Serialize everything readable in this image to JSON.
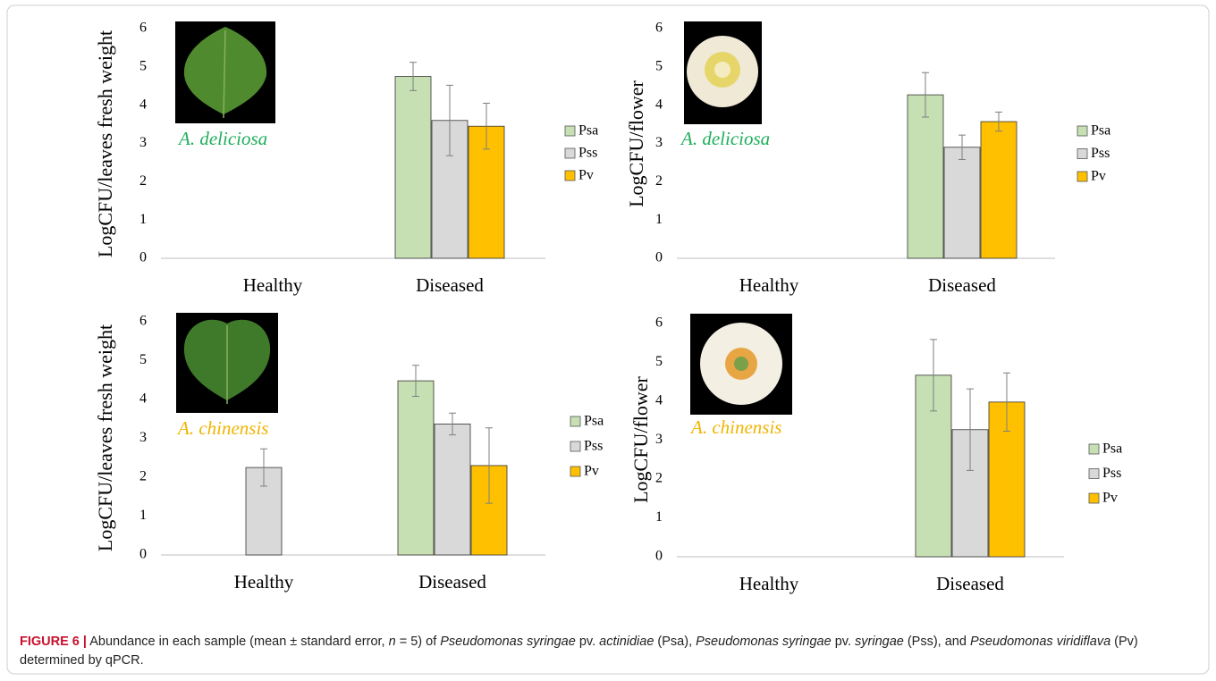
{
  "chart_data": [
    {
      "type": "bar",
      "ylabel": "LogCFU/leaves fresh weight",
      "annotation": "A. deliciosa",
      "categories": [
        "Healthy",
        "Diseased"
      ],
      "series": [
        {
          "name": "Psa",
          "color": "#c6e0b4",
          "values": [
            null,
            4.75
          ],
          "errors": [
            null,
            0.37
          ]
        },
        {
          "name": "Pss",
          "color": "#d9d9d9",
          "values": [
            null,
            3.6
          ],
          "errors": [
            null,
            0.92
          ]
        },
        {
          "name": "Pv",
          "color": "#ffc000",
          "values": [
            null,
            3.45
          ],
          "errors": [
            null,
            0.6
          ]
        }
      ],
      "ylim": [
        0,
        6
      ],
      "yticks": [
        0,
        1,
        2,
        3,
        4,
        5,
        6
      ]
    },
    {
      "type": "bar",
      "ylabel": "LogCFU/flower",
      "annotation": "A. deliciosa",
      "categories": [
        "Healthy",
        "Diseased"
      ],
      "series": [
        {
          "name": "Psa",
          "color": "#c6e0b4",
          "values": [
            null,
            4.27
          ],
          "errors": [
            null,
            0.58
          ]
        },
        {
          "name": "Pss",
          "color": "#d9d9d9",
          "values": [
            null,
            2.9
          ],
          "errors": [
            null,
            0.32
          ]
        },
        {
          "name": "Pv",
          "color": "#ffc000",
          "values": [
            null,
            3.57
          ],
          "errors": [
            null,
            0.25
          ]
        }
      ],
      "ylim": [
        0,
        6
      ],
      "yticks": [
        0,
        1,
        2,
        3,
        4,
        5,
        6
      ]
    },
    {
      "type": "bar",
      "ylabel": "LogCFU/leaves fresh weight",
      "annotation": "A. chinensis",
      "categories": [
        "Healthy",
        "Diseased"
      ],
      "series": [
        {
          "name": "Psa",
          "color": "#c6e0b4",
          "values": [
            null,
            4.48
          ],
          "errors": [
            null,
            0.4
          ]
        },
        {
          "name": "Pss",
          "color": "#d9d9d9",
          "values": [
            2.25,
            3.37
          ],
          "errors": [
            0.48,
            0.28
          ]
        },
        {
          "name": "Pv",
          "color": "#ffc000",
          "values": [
            null,
            2.3
          ],
          "errors": [
            null,
            0.97
          ]
        }
      ],
      "ylim": [
        0,
        6
      ],
      "yticks": [
        0,
        1,
        2,
        3,
        4,
        5,
        6
      ]
    },
    {
      "type": "bar",
      "ylabel": "LogCFU/flower",
      "annotation": "A. chinensis",
      "categories": [
        "Healthy",
        "Diseased"
      ],
      "series": [
        {
          "name": "Psa",
          "color": "#c6e0b4",
          "values": [
            null,
            4.67
          ],
          "errors": [
            null,
            0.92
          ]
        },
        {
          "name": "Pss",
          "color": "#d9d9d9",
          "values": [
            null,
            3.27
          ],
          "errors": [
            null,
            1.05
          ]
        },
        {
          "name": "Pv",
          "color": "#ffc000",
          "values": [
            null,
            3.98
          ],
          "errors": [
            null,
            0.75
          ]
        }
      ],
      "ylim": [
        0,
        6
      ],
      "yticks": [
        0,
        1,
        2,
        3,
        4,
        5,
        6
      ]
    }
  ],
  "caption": {
    "label": "FIGURE 6 |",
    "text": [
      "Abundance in each sample (mean ± standard error, ",
      "n",
      " = 5) of ",
      "Pseudomonas syringae",
      " pv. ",
      "actinidiae",
      " (Psa), ",
      "Pseudomonas syringae",
      " pv. ",
      "syringae",
      " (Pss), and ",
      "Pseudomonas viridiflava",
      " (Pv) determined by qPCR."
    ]
  }
}
